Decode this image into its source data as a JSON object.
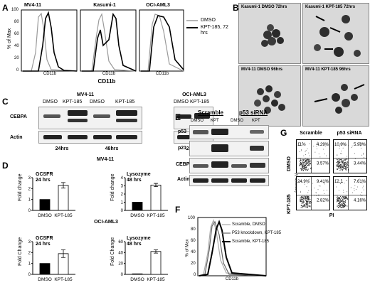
{
  "panels": {
    "A": {
      "letter": "A",
      "ylabel": "% of Max",
      "xlabel": "CD11b",
      "sublabel": "CD11b",
      "titles": [
        "MV4-11",
        "Kasumi-1",
        "OCI-AML3"
      ],
      "legend": {
        "dmso": "DMSO",
        "kpt": "KPT-185, 72 hrs"
      },
      "yticks": [
        "100",
        "80",
        "60",
        "40",
        "20",
        "0"
      ]
    },
    "B": {
      "letter": "B",
      "labels": [
        "Kasumi-1 DMSO  72hrs",
        "Kasumi-1 KPT-185  72hrs",
        "MV4-11 DMSO  96hrs",
        "MV4-11 KPT-185  96hrs"
      ]
    },
    "C": {
      "letter": "C",
      "header_left": "MV4-11",
      "header_right": "OCI-AML3",
      "lanes": [
        "DMSO",
        "KPT-185",
        "DMSO",
        "KPT-185"
      ],
      "lanes_right": "DMSO KPT-185",
      "rows": [
        "CEBPA",
        "Actin"
      ],
      "times": [
        "24hrs",
        "48hrs",
        "24hrs"
      ]
    },
    "D": {
      "letter": "D",
      "top_title": "MV4-11",
      "bottom_title": "OCI-AML3",
      "ylabel": "Fold change",
      "ylabel2": "Fold Change",
      "xcats": [
        "DMSO",
        "KPT-185"
      ],
      "charts": [
        {
          "label": "GCSFR\n24 hrs",
          "l1": "GCSFR",
          "l2": "24 hrs",
          "yticks": [
            "3",
            "2",
            "1",
            "0"
          ],
          "ymax": 3,
          "values": [
            1.0,
            2.3
          ],
          "err": [
            0,
            0.25
          ]
        },
        {
          "label": "Lysozyme\n48 hrs",
          "l1": "Lysozyme",
          "l2": "48 hrs",
          "yticks": [
            "4",
            "3",
            "2",
            "1",
            "0"
          ],
          "ymax": 4,
          "values": [
            1.0,
            3.1
          ],
          "err": [
            0,
            0.2
          ]
        },
        {
          "label": "GCSFR\n24 hrs",
          "l1": "GCSFR",
          "l2": "24 hrs",
          "yticks": [
            "3",
            "2",
            "1",
            "0"
          ],
          "ymax": 3,
          "values": [
            1.0,
            1.9
          ],
          "err": [
            0,
            0.35
          ]
        },
        {
          "label": "Lysozyme\n48 hrs",
          "l1": "Lysozyme",
          "l2": "48 hrs",
          "yticks": [
            "60",
            "40",
            "20",
            "0"
          ],
          "ymax": 60,
          "values": [
            1.0,
            42
          ],
          "err": [
            0,
            3
          ]
        }
      ]
    },
    "E": {
      "letter": "E",
      "groups": [
        "Scramble",
        "p53 siRNA"
      ],
      "lanes": [
        "DMSO",
        "KPT",
        "DMSO",
        "KPT"
      ],
      "rows": [
        "p53",
        "p21",
        "CEBPA",
        "Actin"
      ]
    },
    "F": {
      "letter": "F",
      "legend": [
        "Scramble, DMSO",
        "P53 knockdown, KPT-185",
        "Scramble, KPT-185"
      ],
      "ylabel": "% of Max",
      "xlabel": "CD11b",
      "yticks": [
        "100",
        "80",
        "60",
        "40",
        "20",
        "0"
      ]
    },
    "G": {
      "letter": "G",
      "cols": [
        "Scramble",
        "p53 siRNA"
      ],
      "rows": [
        "DMSO",
        "KPT-185"
      ],
      "ylabel": "Annexin-V",
      "xlabel": "PI",
      "quadrants": [
        [
          "11%",
          "4.29%",
          "",
          "3.57%"
        ],
        [
          "10.9%",
          "5.98%",
          "",
          "3.44%"
        ],
        [
          "24.9%",
          "9.41%",
          "",
          "2.82%"
        ],
        [
          "12.1",
          "7.61%",
          "",
          "4.16%"
        ]
      ]
    }
  },
  "colors": {
    "dmso": "#9a9a9a",
    "kpt": "#000000",
    "dmso_bar": "#000000",
    "kpt_bar": "#ffffff"
  }
}
